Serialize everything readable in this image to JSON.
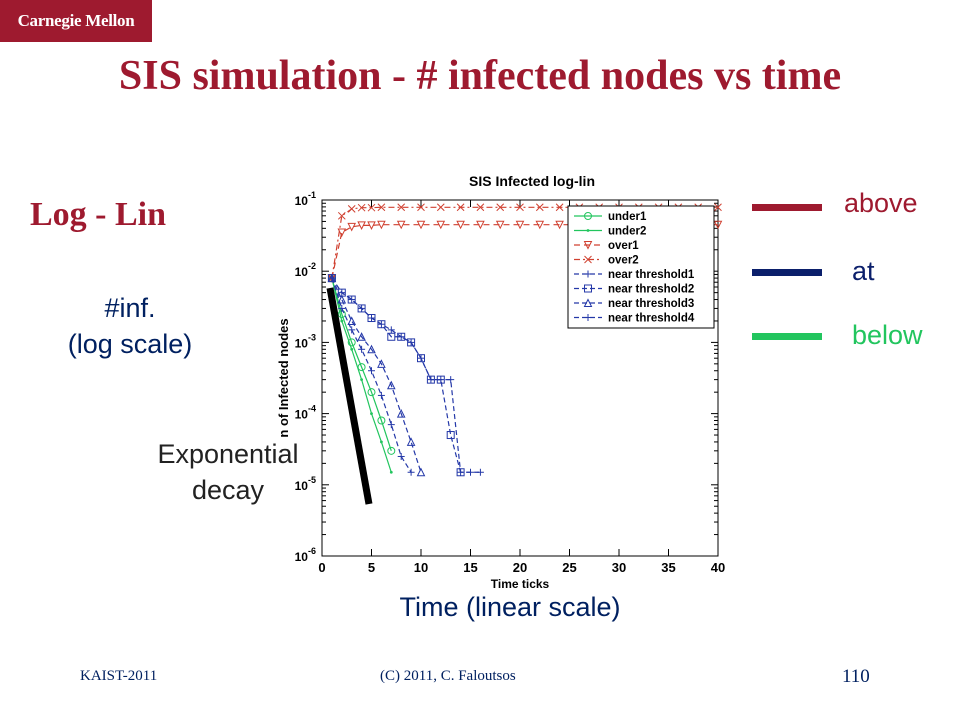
{
  "logo": "Carnegie Mellon",
  "slide": {
    "title": "SIS simulation - # infected nodes vs time",
    "subtitle": "Log - Lin",
    "y_annotation_1": "#inf.",
    "y_annotation_2": "(log scale)",
    "decay_annotation_1": "Exponential",
    "decay_annotation_2": "decay",
    "x_annotation": "Time (linear scale)"
  },
  "side_legend": [
    {
      "label": "above",
      "color": "#9e1a2f"
    },
    {
      "label": "at",
      "color": "#0b1f6b"
    },
    {
      "label": "below",
      "color": "#22c55e"
    }
  ],
  "footer": {
    "left": "KAIST-2011",
    "center": "(C) 2011, C. Faloutsos",
    "page": "110"
  },
  "chart_data": {
    "type": "line",
    "title": "SIS Infected log-lin",
    "xlabel": "Time ticks",
    "ylabel": "n of Infected nodes",
    "y_scale": "log",
    "xlim": [
      0,
      40
    ],
    "ylim": [
      1e-06,
      0.1
    ],
    "x_ticks": [
      "0",
      "5",
      "10",
      "15",
      "20",
      "25",
      "30",
      "35",
      "40"
    ],
    "y_ticks": [
      {
        "base": "10",
        "exp": "-6"
      },
      {
        "base": "10",
        "exp": "-5"
      },
      {
        "base": "10",
        "exp": "-4"
      },
      {
        "base": "10",
        "exp": "-3"
      },
      {
        "base": "10",
        "exp": "-2"
      },
      {
        "base": "10",
        "exp": "-1"
      }
    ],
    "legend_position": "top-right",
    "series": [
      {
        "name": "under1",
        "color": "#22c55e",
        "dash": "",
        "marker": "circle",
        "x": [
          1,
          2,
          3,
          4,
          5,
          6,
          7
        ],
        "y": [
          0.008,
          0.0025,
          0.001,
          0.00045,
          0.0002,
          8e-05,
          3e-05
        ]
      },
      {
        "name": "under2",
        "color": "#22c55e",
        "dash": "",
        "marker": "dot",
        "x": [
          1,
          2,
          3,
          4,
          5,
          6,
          7
        ],
        "y": [
          0.008,
          0.002,
          0.0008,
          0.0003,
          0.0001,
          4e-05,
          1.5e-05
        ]
      },
      {
        "name": "over1",
        "color": "#d04030",
        "dash": "6,4",
        "marker": "triangle-down",
        "x": [
          1,
          2,
          3,
          4,
          5,
          6,
          8,
          10,
          12,
          14,
          16,
          18,
          20,
          22,
          24,
          26,
          28,
          30,
          32,
          34,
          36,
          38,
          40
        ],
        "y": [
          0.008,
          0.035,
          0.042,
          0.044,
          0.044,
          0.045,
          0.045,
          0.045,
          0.045,
          0.045,
          0.045,
          0.045,
          0.045,
          0.045,
          0.045,
          0.045,
          0.045,
          0.045,
          0.045,
          0.045,
          0.045,
          0.045,
          0.045
        ]
      },
      {
        "name": "over2",
        "color": "#d04030",
        "dash": "6,3,2,3",
        "marker": "x",
        "x": [
          1,
          2,
          3,
          4,
          5,
          6,
          8,
          10,
          12,
          14,
          16,
          18,
          20,
          22,
          24,
          26,
          28,
          30,
          32,
          34,
          36,
          38,
          40
        ],
        "y": [
          0.008,
          0.06,
          0.075,
          0.078,
          0.078,
          0.079,
          0.079,
          0.079,
          0.079,
          0.079,
          0.079,
          0.079,
          0.079,
          0.079,
          0.079,
          0.079,
          0.079,
          0.079,
          0.079,
          0.079,
          0.079,
          0.079,
          0.079
        ]
      },
      {
        "name": "near threshold1",
        "color": "#2438a8",
        "dash": "5,3",
        "marker": "plus",
        "x": [
          1,
          2,
          3,
          4,
          5,
          6,
          7,
          8,
          9
        ],
        "y": [
          0.008,
          0.003,
          0.0015,
          0.0008,
          0.0004,
          0.00018,
          7e-05,
          2.5e-05,
          1.5e-05
        ]
      },
      {
        "name": "near threshold2",
        "color": "#2438a8",
        "dash": "5,3",
        "marker": "square",
        "x": [
          1,
          2,
          3,
          4,
          5,
          6,
          7,
          8,
          9,
          10,
          11,
          12,
          13,
          14
        ],
        "y": [
          0.008,
          0.005,
          0.004,
          0.003,
          0.0022,
          0.0018,
          0.0012,
          0.0012,
          0.001,
          0.0006,
          0.0003,
          0.0003,
          5e-05,
          1.5e-05
        ]
      },
      {
        "name": "near threshold3",
        "color": "#2438a8",
        "dash": "5,3",
        "marker": "triangle-up",
        "x": [
          1,
          2,
          3,
          4,
          5,
          6,
          7,
          8,
          9,
          10
        ],
        "y": [
          0.008,
          0.004,
          0.002,
          0.0012,
          0.0008,
          0.0005,
          0.00025,
          0.0001,
          4e-05,
          1.5e-05
        ]
      },
      {
        "name": "near threshold4",
        "color": "#2438a8",
        "dash": "5,3",
        "marker": "plus",
        "x": [
          1,
          2,
          3,
          4,
          5,
          6,
          7,
          8,
          9,
          10,
          11,
          12,
          13,
          14,
          15,
          16
        ],
        "y": [
          0.008,
          0.005,
          0.004,
          0.003,
          0.0022,
          0.0018,
          0.0015,
          0.0012,
          0.001,
          0.0006,
          0.0003,
          0.0003,
          0.0003,
          1.5e-05,
          1.5e-05,
          1.5e-05
        ]
      }
    ]
  }
}
